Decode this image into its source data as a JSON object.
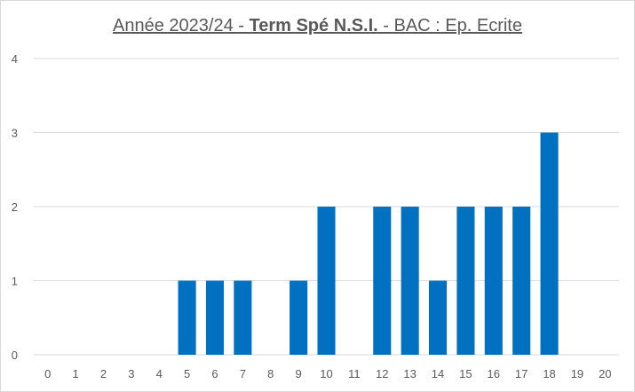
{
  "chart_data": {
    "type": "bar",
    "title": {
      "part1": "Année 2023/24 - ",
      "part2": "Term Spé N.S.I.",
      "part3": " - BAC : Ep. Ecrite"
    },
    "categories": [
      "0",
      "1",
      "2",
      "3",
      "4",
      "5",
      "6",
      "7",
      "8",
      "9",
      "10",
      "11",
      "12",
      "13",
      "14",
      "15",
      "16",
      "17",
      "18",
      "19",
      "20"
    ],
    "values": [
      0,
      0,
      0,
      0,
      0,
      1,
      1,
      1,
      0,
      1,
      2,
      0,
      2,
      2,
      1,
      2,
      2,
      2,
      3,
      0,
      0
    ],
    "ylim": [
      0,
      4
    ],
    "yticks": [
      0,
      1,
      2,
      3,
      4
    ],
    "grid": true,
    "bar_color": "#0070c0",
    "grid_color": "#d9d9d9"
  }
}
